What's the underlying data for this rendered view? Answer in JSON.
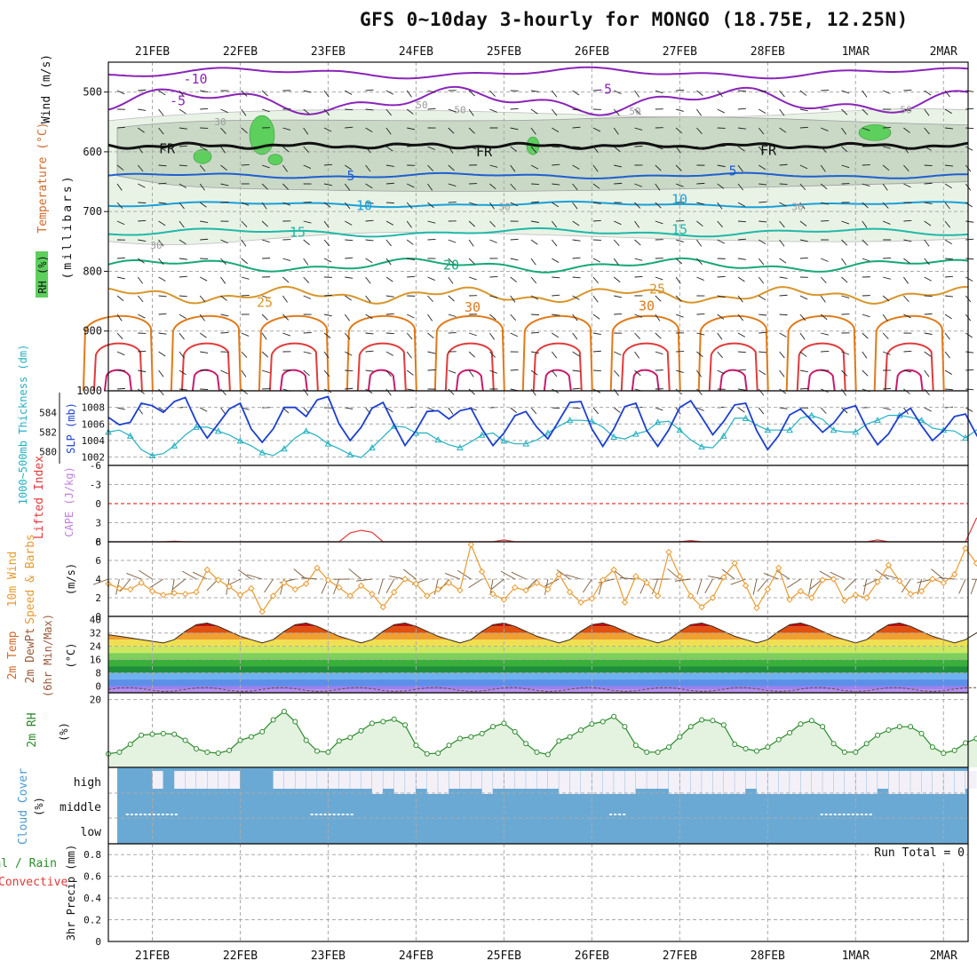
{
  "title": "GFS 0~10day 3-hourly for MONGO (18.75E, 12.25N)",
  "date_labels": [
    "21FEB",
    "22FEB",
    "23FEB",
    "24FEB",
    "25FEB",
    "26FEB",
    "27FEB",
    "28FEB",
    "1MAR",
    "2MAR"
  ],
  "panels": {
    "upper_air": {
      "ylabel_parts": [
        {
          "text": "Wind (m/s)",
          "color": "#111111"
        },
        {
          "text": "Temperature (°C)",
          "color": "#d06a2a"
        },
        {
          "text": "(millibars)",
          "color": "#111111"
        }
      ],
      "rh_label": "RH (%)",
      "yticks": [
        "500",
        "600",
        "700",
        "800",
        "900",
        "1000"
      ],
      "contour_labels": [
        {
          "text": "-10",
          "color": "#8a24b8"
        },
        {
          "text": "-5",
          "color": "#8a24b8"
        },
        {
          "text": "-5",
          "color": "#8a24b8"
        },
        {
          "text": "FR",
          "color": "#111111"
        },
        {
          "text": "FR",
          "color": "#111111"
        },
        {
          "text": "FR",
          "color": "#111111"
        },
        {
          "text": "5",
          "color": "#1f5fcf"
        },
        {
          "text": "5",
          "color": "#1f5fcf"
        },
        {
          "text": "10",
          "color": "#1aa0d8"
        },
        {
          "text": "10",
          "color": "#1aa0d8"
        },
        {
          "text": "15",
          "color": "#20b8a8"
        },
        {
          "text": "15",
          "color": "#20b8a8"
        },
        {
          "text": "20",
          "color": "#16a878"
        },
        {
          "text": "25",
          "color": "#d8962a"
        },
        {
          "text": "25",
          "color": "#d8962a"
        },
        {
          "text": "30",
          "color": "#e07a18"
        },
        {
          "text": "30",
          "color": "#e07a18"
        },
        {
          "text": "30",
          "color": "#9a9a9a"
        },
        {
          "text": "30",
          "color": "#9a9a9a"
        },
        {
          "text": "30",
          "color": "#9a9a9a"
        },
        {
          "text": "30",
          "color": "#9a9a9a"
        },
        {
          "text": "50",
          "color": "#9a9a9a"
        },
        {
          "text": "50",
          "color": "#9a9a9a"
        },
        {
          "text": "50",
          "color": "#9a9a9a"
        },
        {
          "text": "50",
          "color": "#9a9a9a"
        }
      ]
    },
    "thickness": {
      "ylabel_left": "1000~500mb Thickness (dm)",
      "ylabel_right": "SLP (mb)",
      "yticks_left": [
        "584",
        "582",
        "580"
      ],
      "yticks_right": [
        "1008",
        "1006",
        "1004",
        "1002"
      ]
    },
    "lifted": {
      "ylabel_left": "Lifted Index",
      "ylabel_right": "CAPE (J/kg)",
      "yticks": [
        "-6",
        "-3",
        "0",
        "3",
        "6"
      ]
    },
    "wind10": {
      "ylabel_a": "10m Wind",
      "ylabel_b": "Speed & Barbs",
      "unit": "(m/s)",
      "yticks": [
        "8",
        "6",
        "4",
        "2",
        "0"
      ]
    },
    "temp2m": {
      "ylabel_a": "2m Temp",
      "ylabel_b": "2m DewPt",
      "ylabel_c": "(6hr Min/Max)",
      "unit": "(°C)",
      "yticks": [
        "40",
        "32",
        "24",
        "16",
        "8",
        "0"
      ]
    },
    "rh2m": {
      "ylabel": "2m RH",
      "unit": "(%)",
      "yticks": [
        "20"
      ]
    },
    "cloud": {
      "ylabel": "Cloud Cover",
      "unit": "(%)",
      "levels": [
        "high",
        "middle",
        "low"
      ]
    },
    "precip": {
      "ylabel_a": "Total / Rain",
      "ylabel_b": "Convective",
      "ylabel_c": "3hr Precip (mm)",
      "yticks": [
        "0.8",
        "0.6",
        "0.4",
        "0.2",
        "0"
      ],
      "run_total": "Run Total = 0"
    }
  },
  "chart_data": {
    "type": "line",
    "time_axis": {
      "start_day": 20.5,
      "end_day": 30.28,
      "step_hours": 3,
      "labels_at_midnight": [
        "21FEB",
        "22FEB",
        "23FEB",
        "24FEB",
        "25FEB",
        "26FEB",
        "27FEB",
        "28FEB",
        "1MAR",
        "2MAR"
      ]
    },
    "series": [
      {
        "name": "SLP (mb)",
        "color": "#1c3fcf",
        "ylim": [
          1001,
          1010
        ],
        "values": [
          1006.8,
          1005.9,
          1006.2,
          1008.5,
          1008.2,
          1007.4,
          1008.7,
          1009.2,
          1006.3,
          1004.3,
          1006.0,
          1007.8,
          1008.5,
          1005.4,
          1003.8,
          1005.4,
          1008.0,
          1008.0,
          1006.9,
          1008.9,
          1009.3,
          1006.0,
          1004.0,
          1005.6,
          1007.9,
          1008.6,
          1005.9,
          1003.4,
          1005.2,
          1007.5,
          1007.6,
          1006.6,
          1007.6,
          1007.9,
          1005.4,
          1003.4,
          1004.9,
          1007.0,
          1007.5,
          1005.6,
          1004.2,
          1006.4,
          1008.6,
          1008.7,
          1005.4,
          1003.3,
          1005.4,
          1008.1,
          1008.5,
          1005.2,
          1003.3,
          1005.3,
          1008.0,
          1008.8,
          1006.8,
          1004.7,
          1006.3,
          1008.3,
          1008.5,
          1005.2,
          1002.9,
          1004.6,
          1007.1,
          1007.8,
          1006.4,
          1005.0,
          1006.1,
          1007.8,
          1008.2,
          1005.5,
          1003.5,
          1004.8,
          1007.0,
          1007.9,
          1005.8,
          1004.0,
          1005.2,
          1006.9,
          1007.2,
          1004.7,
          1002.5,
          1004.2,
          1006.4,
          1006.8
        ]
      },
      {
        "name": "1000-500mb Thickness (dm)",
        "color": "#22b0c0",
        "ylim": [
          578.6,
          586.2
        ],
        "values": [
          582.0,
          582.2,
          581.6,
          580.2,
          579.6,
          579.8,
          580.6,
          581.7,
          582.5,
          582.5,
          582.1,
          581.7,
          581.1,
          580.6,
          579.9,
          579.6,
          580.3,
          581.4,
          582.1,
          581.6,
          580.8,
          580.3,
          579.7,
          579.4,
          580.4,
          581.5,
          582.6,
          582.5,
          581.9,
          581.9,
          581.2,
          580.7,
          580.4,
          581.0,
          581.7,
          581.9,
          581.1,
          580.8,
          580.8,
          581.2,
          581.9,
          582.6,
          583.2,
          583.2,
          583.1,
          582.5,
          581.5,
          581.3,
          581.8,
          582.1,
          583.0,
          583.1,
          582.2,
          581.2,
          580.5,
          580.4,
          581.6,
          583.4,
          583.4,
          582.7,
          582.2,
          582.2,
          582.2,
          583.4,
          583.7,
          583.3,
          582.2,
          582.0,
          582.0,
          582.8,
          583.2,
          583.7,
          583.7,
          583.5,
          583.2,
          582.4,
          582.2,
          582.1,
          581.4,
          582.2,
          582.7,
          582.9,
          583.5,
          584.0
        ]
      },
      {
        "name": "Lifted Index",
        "color": "#e03a3a",
        "ylim": [
          -6,
          6
        ],
        "values": [
          6,
          6,
          6,
          6,
          6,
          6,
          5.9,
          6,
          6,
          6,
          6,
          6,
          6,
          6,
          6,
          6,
          6,
          6,
          6,
          6,
          6,
          6,
          4.6,
          4.2,
          4.5,
          6,
          6,
          6,
          6,
          6,
          6,
          6,
          6,
          6,
          6,
          6,
          5.7,
          6,
          6,
          6,
          6,
          6,
          6,
          6,
          6,
          6,
          6,
          6,
          6,
          6,
          6,
          6,
          6,
          5.8,
          6,
          6,
          6,
          6,
          6,
          6,
          6,
          6,
          6,
          6,
          6,
          6,
          6,
          6,
          6,
          6,
          5.7,
          6,
          6,
          6,
          6,
          6,
          6,
          6,
          6,
          2.3,
          1.9,
          4.4,
          6,
          6
        ]
      },
      {
        "name": "10m Wind Speed (m/s)",
        "color": "#e89a30",
        "ylim": [
          0,
          8
        ],
        "values": [
          3.5,
          3.0,
          2.9,
          3.6,
          2.7,
          2.3,
          2.5,
          2.4,
          2.6,
          5.0,
          3.9,
          3.2,
          2.3,
          3.0,
          0.5,
          2.2,
          3.6,
          2.9,
          3.5,
          5.2,
          3.9,
          3.1,
          2.2,
          3.3,
          2.4,
          1.0,
          2.6,
          4.0,
          3.5,
          2.2,
          2.9,
          3.6,
          2.8,
          7.7,
          4.8,
          2.4,
          1.8,
          3.1,
          2.8,
          3.6,
          2.9,
          4.5,
          2.6,
          1.5,
          1.9,
          3.9,
          5.0,
          1.5,
          4.3,
          3.6,
          2.2,
          6.9,
          4.3,
          2.2,
          1.0,
          2.0,
          4.2,
          5.7,
          3.3,
          0.9,
          2.9,
          5.2,
          1.8,
          2.7,
          2.0,
          3.9,
          4.0,
          1.7,
          2.3,
          2.0,
          3.7,
          5.5,
          3.8,
          2.4,
          2.7,
          4.0,
          3.6,
          4.5,
          7.3,
          5.7,
          3.4,
          2.7,
          4.4,
          4.0
        ]
      },
      {
        "name": "2m Temp (°C)",
        "color": "#d03010",
        "ylim": [
          -4,
          42
        ],
        "values": [
          31,
          30,
          29,
          28,
          27,
          26,
          28,
          33,
          37,
          38,
          36,
          33,
          30,
          28,
          26,
          28,
          33,
          37,
          38,
          36,
          33,
          30,
          28,
          26,
          28,
          33,
          37,
          38,
          36,
          33,
          30,
          28,
          26,
          28,
          33,
          37,
          38,
          36,
          33,
          30,
          28,
          26,
          28,
          33,
          37,
          38,
          36,
          33,
          30,
          28,
          26,
          28,
          33,
          37,
          38,
          36,
          33,
          30,
          28,
          26,
          28,
          33,
          37,
          38,
          36,
          33,
          30,
          28,
          26,
          28,
          33,
          37,
          38,
          36,
          33,
          30,
          28,
          26,
          28,
          32,
          35,
          34,
          32,
          30
        ]
      },
      {
        "name": "2m RH (%)",
        "color": "#2a8a2a",
        "ylim": [
          0,
          22
        ],
        "values": [
          4.0,
          4.5,
          6.8,
          9.5,
          9.8,
          10.0,
          9.8,
          8.0,
          5.5,
          4.5,
          4.2,
          5.0,
          8.0,
          9.0,
          10.5,
          14.0,
          16.5,
          13.5,
          8.0,
          4.8,
          4.5,
          7.8,
          8.8,
          10.8,
          13.0,
          13.5,
          14.2,
          12.5,
          6.5,
          4.0,
          4.2,
          6.5,
          8.5,
          9.0,
          10.0,
          12.0,
          13.0,
          10.5,
          7.0,
          4.5,
          3.8,
          7.8,
          9.0,
          11.0,
          12.8,
          13.5,
          15.0,
          12.0,
          6.5,
          4.5,
          4.5,
          6.0,
          9.0,
          12.0,
          14.0,
          13.8,
          12.5,
          6.8,
          5.5,
          4.8,
          6.0,
          8.2,
          10.2,
          12.8,
          13.8,
          12.0,
          7.0,
          4.5,
          4.5,
          7.0,
          9.5,
          11.0,
          12.0,
          12.0,
          10.0,
          6.0,
          4.2,
          5.0,
          7.2,
          8.5,
          9.5,
          9.0,
          9.8,
          10.2
        ]
      },
      {
        "name": "3hr Precip (mm)",
        "color": "#2a8a2a",
        "ylim": [
          0,
          1
        ],
        "values": [
          0
        ]
      }
    ]
  }
}
